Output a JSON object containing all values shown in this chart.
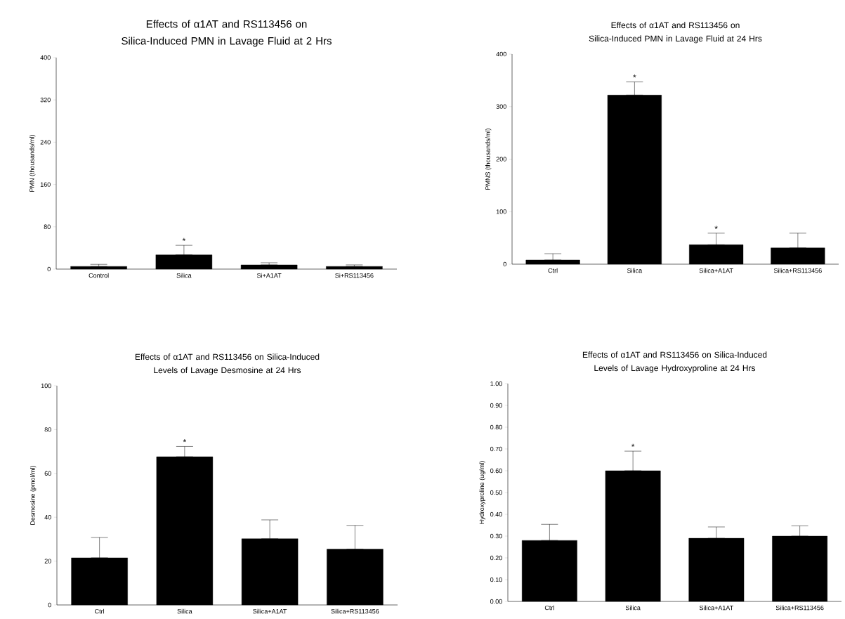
{
  "chart_data": [
    {
      "type": "bar",
      "title": "Effects of α1AT and RS113456 on Silica-Induced PMN in Lavage Fluid at 2 Hrs",
      "ylabel": "PMN (thousands/ml)",
      "categories": [
        "Control",
        "Silica",
        "Si+A1AT",
        "Si+RS113456"
      ],
      "values": [
        5,
        27,
        8,
        5
      ],
      "errors": [
        [
          5,
          9
        ],
        [
          27,
          45
        ],
        [
          8,
          12
        ],
        [
          5,
          8
        ]
      ],
      "color": "#000000",
      "ylim": [
        0,
        400
      ],
      "yticks": [
        0,
        80,
        160,
        240,
        320,
        400
      ],
      "annotations": [
        {
          "text": "*",
          "x": "Silica",
          "y": 45
        }
      ]
    },
    {
      "type": "bar",
      "title": "Effects of α1AT and RS113456 on Silica-Induced PMN in Lavage Fluid at 24 Hrs",
      "ylabel": "PMNS (thousands/ml)",
      "categories": [
        "Ctrl",
        "Silica",
        "Silica+A1AT",
        "Silica+RS113456"
      ],
      "values": [
        8,
        322,
        37,
        31
      ],
      "errors": [
        [
          8,
          20
        ],
        [
          322,
          347
        ],
        [
          37,
          59
        ],
        [
          31,
          59
        ]
      ],
      "color": "#000000",
      "ylim": [
        0,
        400
      ],
      "yticks": [
        0,
        100,
        200,
        300,
        400
      ],
      "annotations": [
        {
          "text": "*",
          "x": "Silica",
          "y": 347
        },
        {
          "text": "*",
          "x": "Silica+A1AT",
          "y": 59
        }
      ]
    },
    {
      "type": "bar",
      "title": "Effects of α1AT and RS113456 on Silica-Induced Levels of Lavage Desmosine at 24 Hrs",
      "ylabel": "Desmosine (pmol/ml)",
      "categories": [
        "Ctrl",
        "Silica",
        "Silica+A1AT",
        "Silica+RS113456"
      ],
      "values": [
        21.5,
        67.6,
        30.2,
        25.5
      ],
      "errors": [
        [
          21.5,
          30.8
        ],
        [
          67.6,
          72.3
        ],
        [
          30.2,
          38.8
        ],
        [
          25.5,
          36.3
        ]
      ],
      "color": "#000000",
      "ylim": [
        0,
        100
      ],
      "yticks": [
        0,
        20,
        40,
        60,
        80,
        100
      ],
      "annotations": [
        {
          "text": "*",
          "x": "Silica",
          "y": 72.3
        }
      ]
    },
    {
      "type": "bar",
      "title": "Effects of α1AT and RS113456 on Silica-Induced Levels of Lavage Hydroxyproline at 24 Hrs",
      "ylabel": "Hydroxyproline (ug/ml)",
      "categories": [
        "Ctrl",
        "Silica",
        "Silica+A1AT",
        "Silica+RS113456"
      ],
      "values": [
        0.28,
        0.6,
        0.29,
        0.3
      ],
      "errors": [
        [
          0.28,
          0.354
        ],
        [
          0.6,
          0.69
        ],
        [
          0.29,
          0.342
        ],
        [
          0.3,
          0.347
        ]
      ],
      "color": "#000000",
      "ylim": [
        0,
        1
      ],
      "yticks": [
        {
          "value": 0,
          "label": "0.00"
        },
        {
          "value": 0.1,
          "label": "0.10"
        },
        {
          "value": 0.2,
          "label": "0.20"
        },
        {
          "value": 0.3,
          "label": "0.30"
        },
        {
          "value": 0.4,
          "label": "0.40"
        },
        {
          "value": 0.5,
          "label": "0.50"
        },
        {
          "value": 0.6,
          "label": "0.60"
        },
        {
          "value": 0.7,
          "label": "0.70"
        },
        {
          "value": 0.8,
          "label": "0.80"
        },
        {
          "value": 0.9,
          "label": "0.90"
        },
        {
          "value": 1,
          "label": "1.00"
        }
      ],
      "annotations": [
        {
          "text": "*",
          "x": "Silica",
          "y": 0.69
        }
      ]
    }
  ]
}
